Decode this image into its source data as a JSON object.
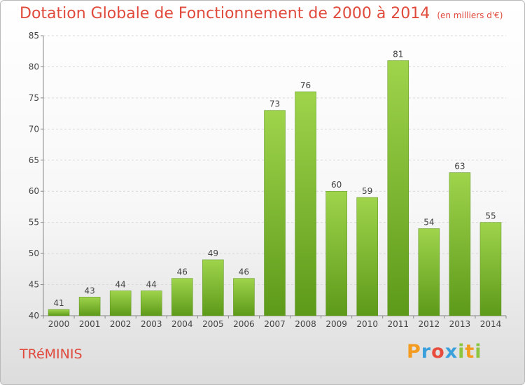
{
  "title": "Dotation Globale de Fonctionnement de 2000 à 2014",
  "unit": "(en milliers d'€)",
  "commune": "TRéMINIS",
  "logo": {
    "p": "P",
    "r": "r",
    "o": "o",
    "x": "x",
    "i": "i",
    "t": "t",
    "i2": "i"
  },
  "colors": {
    "accent": "#e04a3c",
    "bar_light": "#9fd44c",
    "bar_dark": "#5d9a19"
  },
  "chart_data": {
    "type": "bar",
    "categories": [
      "2000",
      "2001",
      "2002",
      "2003",
      "2004",
      "2005",
      "2006",
      "2007",
      "2008",
      "2009",
      "2010",
      "2011",
      "2012",
      "2013",
      "2014"
    ],
    "values": [
      41,
      43,
      44,
      44,
      46,
      49,
      46,
      73,
      76,
      60,
      59,
      81,
      54,
      63,
      55
    ],
    "ylim": [
      40,
      85
    ],
    "yticks": [
      40,
      45,
      50,
      55,
      60,
      65,
      70,
      75,
      80,
      85
    ],
    "grid": true,
    "xlabel": "",
    "ylabel": ""
  }
}
